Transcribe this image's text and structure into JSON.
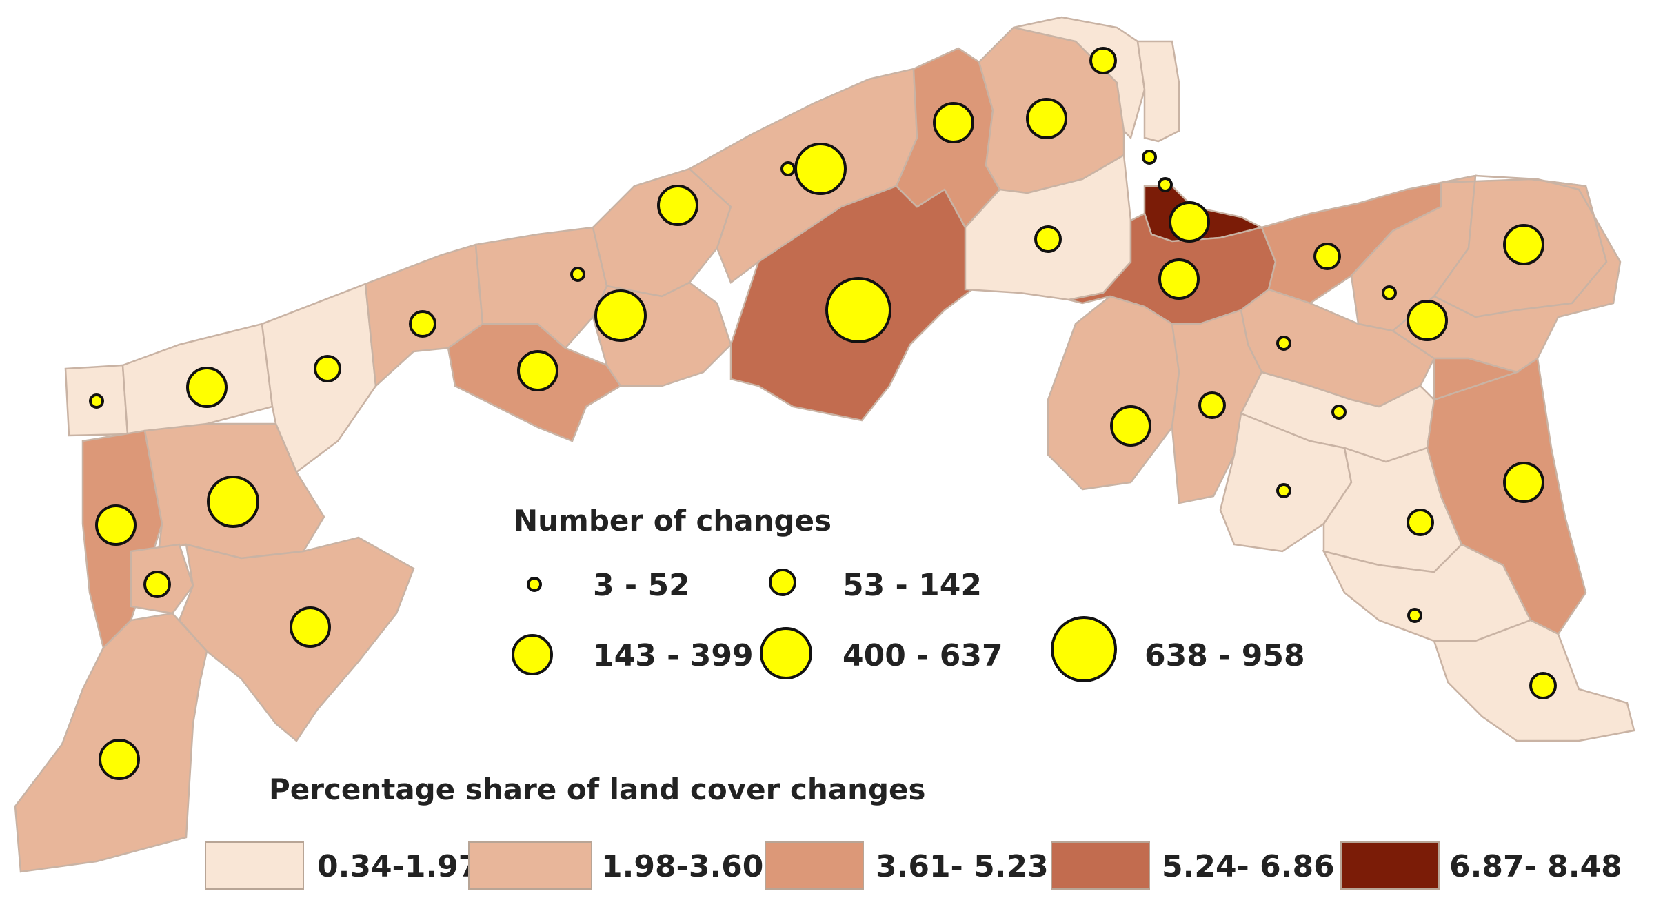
{
  "map": {
    "class_colors": [
      "#f9e6d6",
      "#e8b69a",
      "#dc9878",
      "#c26c4f",
      "#7b1c07"
    ],
    "bubble_color": "#ffff00",
    "regions": [
      {
        "name": "r-west-edge",
        "class": 0
      },
      {
        "name": "r-west-1",
        "class": 0
      },
      {
        "name": "r-west-2",
        "class": 0
      },
      {
        "name": "r-west-3",
        "class": 1
      },
      {
        "name": "r-south-west-strip",
        "class": 2
      },
      {
        "name": "r-south-west-big",
        "class": 1
      },
      {
        "name": "r-south-west-small",
        "class": 1
      },
      {
        "name": "r-south-west-mid",
        "class": 1
      },
      {
        "name": "r-south-west-tail",
        "class": 1
      },
      {
        "name": "r-central-1",
        "class": 2
      },
      {
        "name": "r-central-2",
        "class": 1
      },
      {
        "name": "r-central-3",
        "class": 1
      },
      {
        "name": "r-central-4",
        "class": 1
      },
      {
        "name": "r-central-5",
        "class": 1
      },
      {
        "name": "r-central-big",
        "class": 3
      },
      {
        "name": "r-north-1",
        "class": 2
      },
      {
        "name": "r-north-2",
        "class": 1
      },
      {
        "name": "r-north-3",
        "class": 0
      },
      {
        "name": "r-north-4",
        "class": 0
      },
      {
        "name": "r-north-5",
        "class": 0
      },
      {
        "name": "r-gdansk",
        "class": 4
      },
      {
        "name": "r-gdansk-surround",
        "class": 3
      },
      {
        "name": "r-east-1",
        "class": 2
      },
      {
        "name": "r-east-2",
        "class": 1
      },
      {
        "name": "r-east-3",
        "class": 1
      },
      {
        "name": "r-east-4",
        "class": 1
      },
      {
        "name": "r-east-5",
        "class": 1
      },
      {
        "name": "r-east-6",
        "class": 1
      },
      {
        "name": "r-east-7",
        "class": 0
      },
      {
        "name": "r-east-8",
        "class": 0
      },
      {
        "name": "r-east-9",
        "class": 0
      },
      {
        "name": "r-east-10",
        "class": 2
      },
      {
        "name": "r-east-11",
        "class": 0
      },
      {
        "name": "r-east-12",
        "class": 0
      },
      {
        "name": "r-east-13",
        "class": 1
      },
      {
        "name": "r-east-14",
        "class": 2
      }
    ],
    "bubbles": [
      {
        "changes": 30
      },
      {
        "changes": 250
      },
      {
        "changes": 100
      },
      {
        "changes": 100
      },
      {
        "changes": 250
      },
      {
        "changes": 450
      },
      {
        "changes": 100
      },
      {
        "changes": 250
      },
      {
        "changes": 250
      },
      {
        "changes": 250
      },
      {
        "changes": 20
      },
      {
        "changes": 450
      },
      {
        "changes": 250
      },
      {
        "changes": 20
      },
      {
        "changes": 450
      },
      {
        "changes": 800
      },
      {
        "changes": 250
      },
      {
        "changes": 250
      },
      {
        "changes": 100
      },
      {
        "changes": 100
      },
      {
        "changes": 30
      },
      {
        "changes": 30
      },
      {
        "changes": 250
      },
      {
        "changes": 250
      },
      {
        "changes": 100
      },
      {
        "changes": 20
      },
      {
        "changes": 250
      },
      {
        "changes": 250
      },
      {
        "changes": 30
      },
      {
        "changes": 30
      },
      {
        "changes": 250
      },
      {
        "changes": 100
      },
      {
        "changes": 30
      },
      {
        "changes": 100
      },
      {
        "changes": 250
      },
      {
        "changes": 30
      },
      {
        "changes": 100
      }
    ]
  },
  "legend_changes": {
    "title": "Number of changes",
    "items": [
      {
        "label": "3 - 52"
      },
      {
        "label": "53 - 142"
      },
      {
        "label": "143 - 399"
      },
      {
        "label": "400 - 637"
      },
      {
        "label": "638 - 958"
      }
    ]
  },
  "legend_share": {
    "title": "Percentage share of land cover changes",
    "items": [
      {
        "label": "0.34-1.97",
        "color": "#f9e6d6"
      },
      {
        "label": "1.98-3.60",
        "color": "#e8b69a"
      },
      {
        "label": "3.61- 5.23",
        "color": "#dc9878"
      },
      {
        "label": "5.24- 6.86",
        "color": "#c26c4f"
      },
      {
        "label": "6.87- 8.48",
        "color": "#7b1c07"
      }
    ]
  }
}
